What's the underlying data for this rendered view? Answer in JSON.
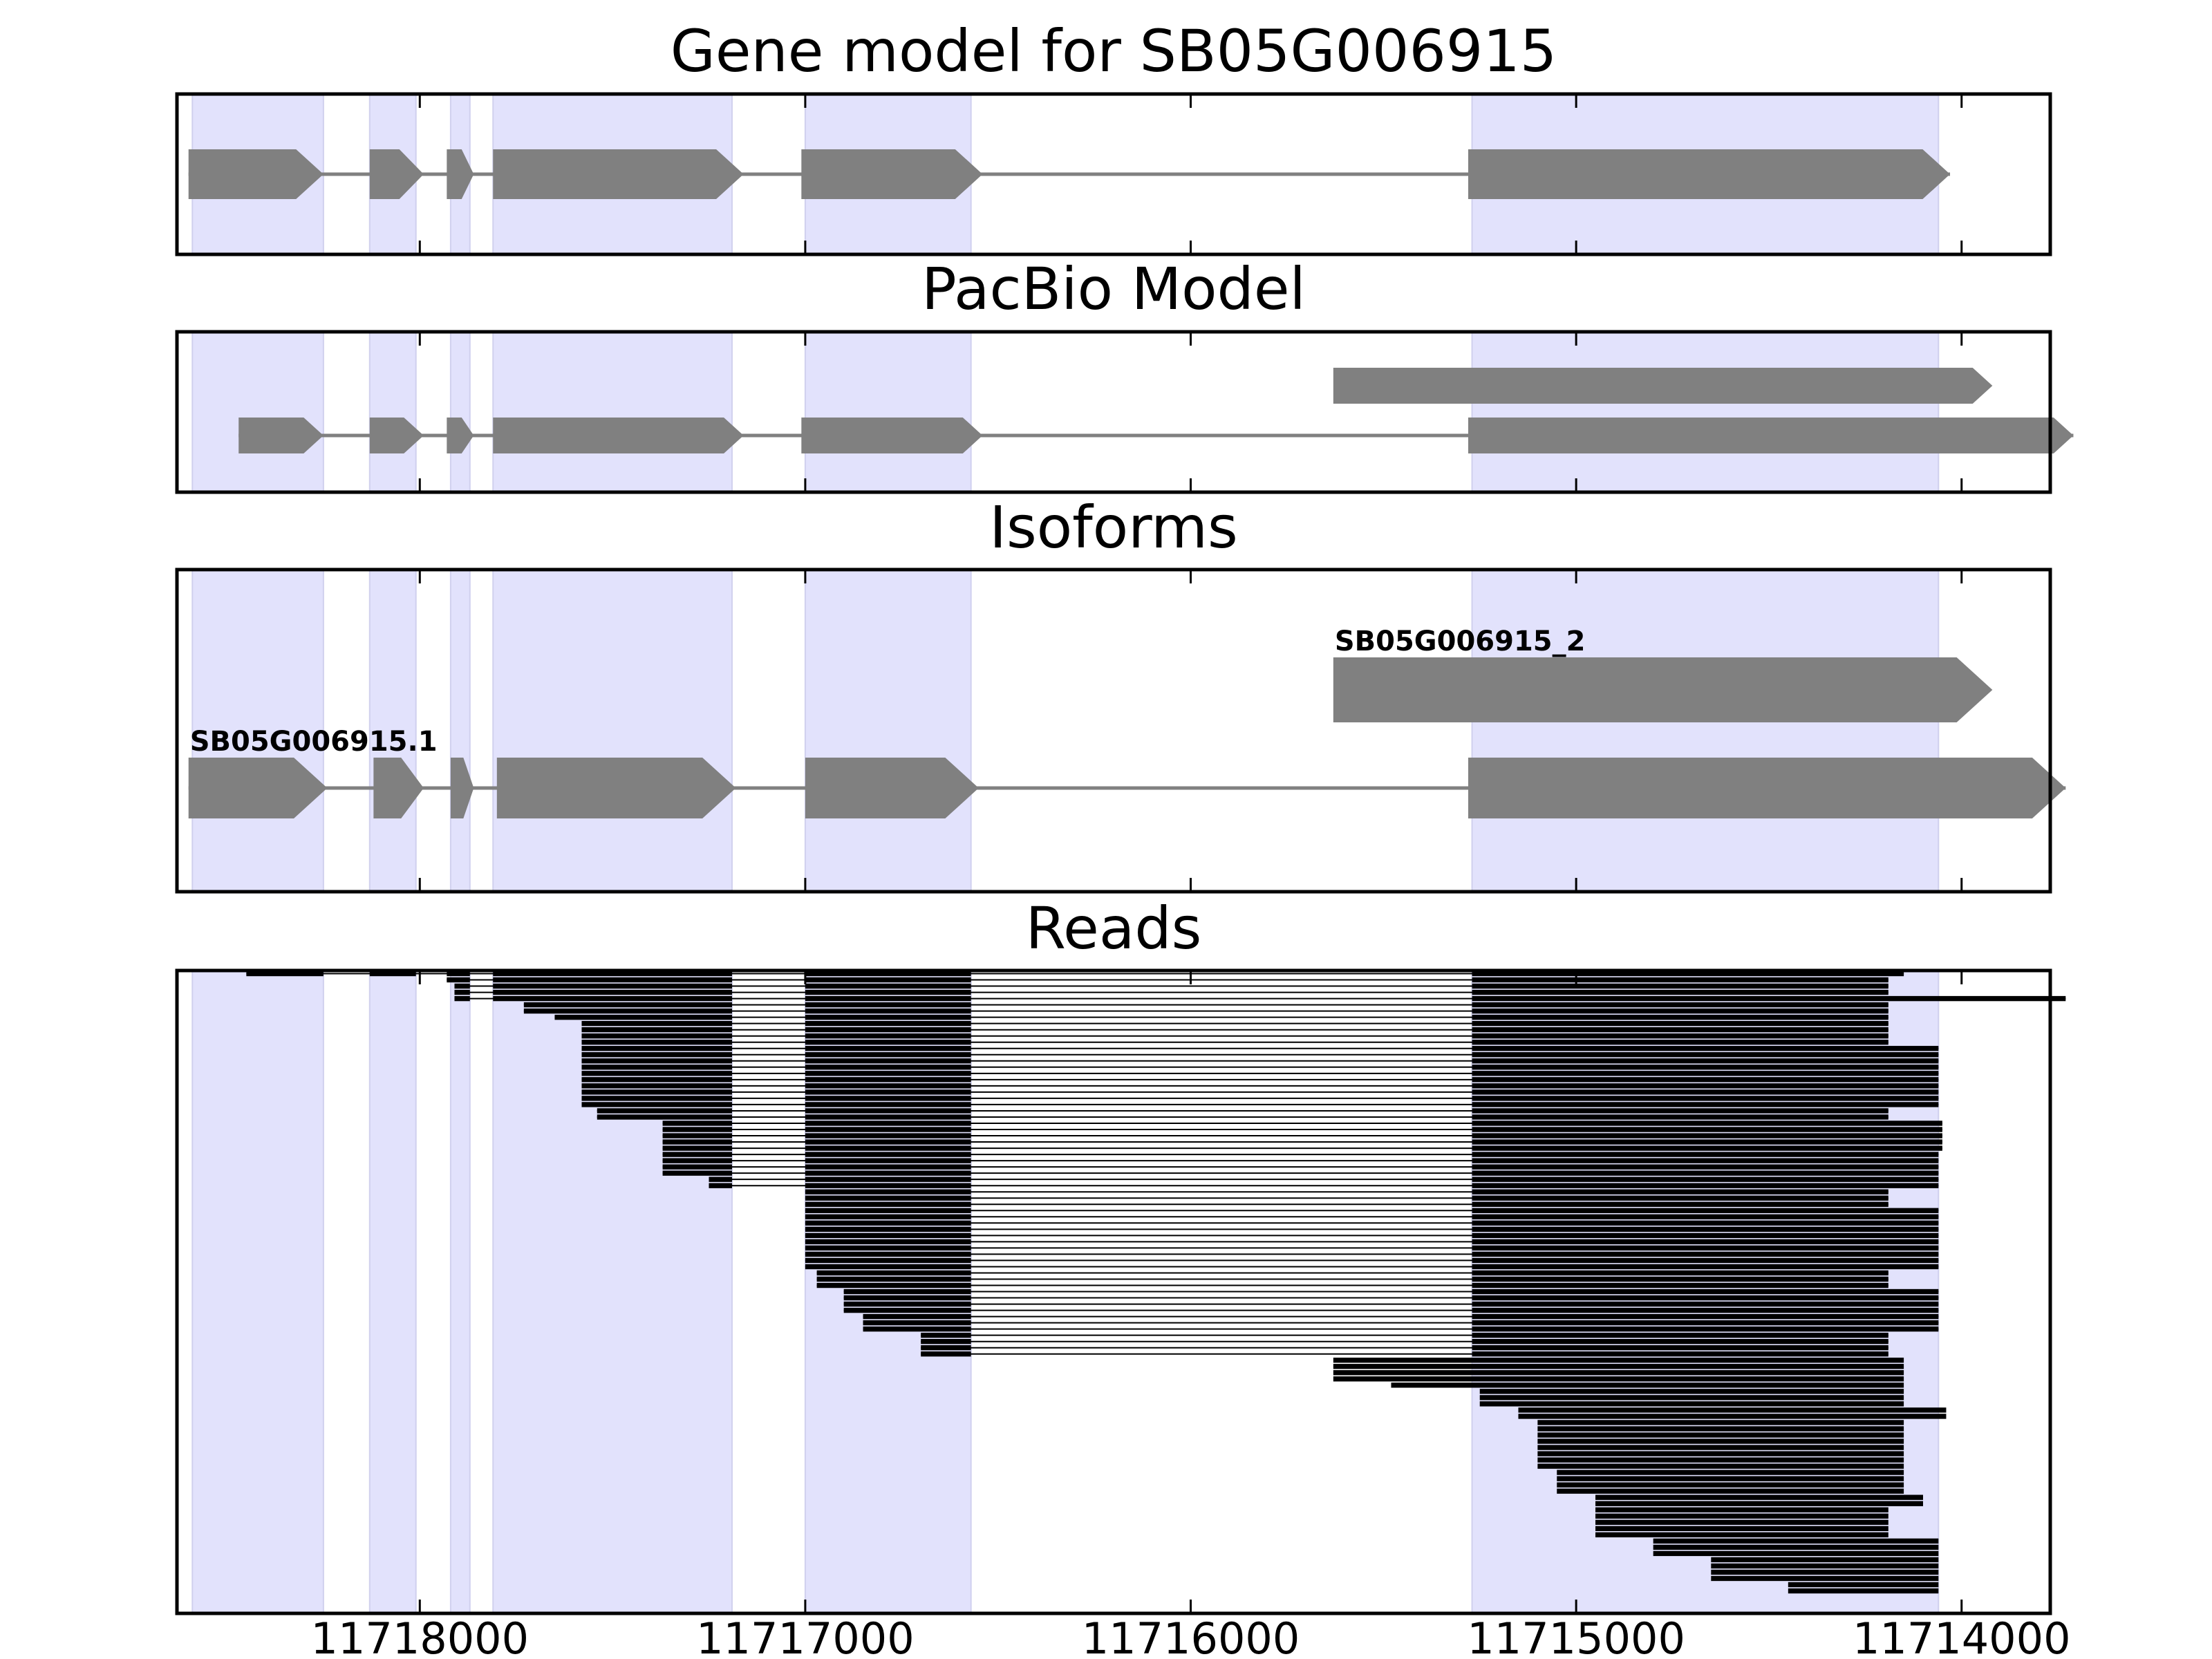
{
  "chart_data": {
    "type": "gene-track",
    "title": "Gene model for SB05G006915",
    "xlim": [
      11718630,
      11713770
    ],
    "x_ticks": [
      11718000,
      11717000,
      11716000,
      11715000,
      11714000
    ],
    "x_tick_labels": [
      "11718000",
      "11717000",
      "11716000",
      "11715000",
      "11714000"
    ],
    "colors": {
      "exon_shading": "#e2e2fc",
      "feature": "#808080",
      "intron_line": "#808080",
      "read": "#000000",
      "frame": "#000000"
    },
    "exon_regions": [
      [
        11718590,
        11718250
      ],
      [
        11718130,
        11718010
      ],
      [
        11717920,
        11717870
      ],
      [
        11717810,
        11717190
      ],
      [
        11717000,
        11716570
      ],
      [
        11715270,
        11714060
      ]
    ],
    "panels": [
      {
        "name": "gene-model",
        "title": "Gene model for SB05G006915",
        "rows": [
          {
            "exons": [
              [
                11718600,
                11718250
              ],
              [
                11718130,
                11717990
              ],
              [
                11717930,
                11717860
              ],
              [
                11717810,
                11717160
              ],
              [
                11717010,
                11716540
              ],
              [
                11715280,
                11714030
              ]
            ]
          }
        ]
      },
      {
        "name": "pacbio-model",
        "title": "PacBio Model",
        "rows": [
          {
            "exons": [
              [
                11715630,
                11713920
              ]
            ]
          },
          {
            "exons": [
              [
                11718470,
                11718250
              ],
              [
                11718130,
                11717990
              ],
              [
                11717930,
                11717860
              ],
              [
                11717810,
                11717160
              ],
              [
                11717010,
                11716540
              ],
              [
                11715280,
                11713710
              ]
            ]
          }
        ]
      },
      {
        "name": "isoforms",
        "title": "Isoforms",
        "rows": [
          {
            "label": "SB05G006915_2",
            "exons": [
              [
                11715630,
                11713920
              ]
            ]
          },
          {
            "label": "SB05G006915.1",
            "exons": [
              [
                11718600,
                11718240
              ],
              [
                11718120,
                11717990
              ],
              [
                11717920,
                11717860
              ],
              [
                11717800,
                11717180
              ],
              [
                11717000,
                11716550
              ],
              [
                11715280,
                11713730
              ]
            ]
          }
        ]
      },
      {
        "name": "reads",
        "title": "Reads",
        "groups": [
          {
            "count": 1,
            "blocks": [
              [
                11718450,
                11718250
              ],
              [
                11718130,
                11718010
              ],
              [
                11717930,
                11717870
              ],
              [
                11717810,
                11717190
              ],
              [
                11717000,
                11716570
              ],
              [
                11715270,
                11714150
              ]
            ]
          },
          {
            "count": 1,
            "blocks": [
              [
                11717930,
                11717870
              ],
              [
                11717810,
                11717190
              ],
              [
                11717000,
                11716570
              ],
              [
                11715270,
                11714190
              ]
            ]
          },
          {
            "count": 2,
            "blocks": [
              [
                11717910,
                11717870
              ],
              [
                11717810,
                11717190
              ],
              [
                11717000,
                11716570
              ],
              [
                11715270,
                11714190
              ]
            ]
          },
          {
            "count": 1,
            "blocks": [
              [
                11717910,
                11717870
              ],
              [
                11717810,
                11717190
              ],
              [
                11717000,
                11716570
              ],
              [
                11715270,
                11713730
              ]
            ]
          },
          {
            "count": 2,
            "blocks": [
              [
                11717730,
                11717190
              ],
              [
                11717000,
                11716570
              ],
              [
                11715270,
                11714190
              ]
            ]
          },
          {
            "count": 1,
            "blocks": [
              [
                11717650,
                11717190
              ],
              [
                11717000,
                11716570
              ],
              [
                11715270,
                11714190
              ]
            ]
          },
          {
            "count": 4,
            "blocks": [
              [
                11717580,
                11717190
              ],
              [
                11717000,
                11716570
              ],
              [
                11715270,
                11714190
              ]
            ]
          },
          {
            "count": 10,
            "blocks": [
              [
                11717580,
                11717190
              ],
              [
                11717000,
                11716570
              ],
              [
                11715270,
                11714060
              ]
            ]
          },
          {
            "count": 2,
            "blocks": [
              [
                11717540,
                11717190
              ],
              [
                11717000,
                11716570
              ],
              [
                11715270,
                11714190
              ]
            ]
          },
          {
            "count": 5,
            "blocks": [
              [
                11717370,
                11717190
              ],
              [
                11717000,
                11716570
              ],
              [
                11715270,
                11714050
              ]
            ]
          },
          {
            "count": 4,
            "blocks": [
              [
                11717370,
                11717190
              ],
              [
                11717000,
                11716570
              ],
              [
                11715270,
                11714060
              ]
            ]
          },
          {
            "count": 2,
            "blocks": [
              [
                11717250,
                11717190
              ],
              [
                11717000,
                11716570
              ],
              [
                11715270,
                11714060
              ]
            ]
          },
          {
            "count": 3,
            "blocks": [
              [
                11717000,
                11716570
              ],
              [
                11715270,
                11714190
              ]
            ]
          },
          {
            "count": 10,
            "blocks": [
              [
                11717000,
                11716570
              ],
              [
                11715270,
                11714060
              ]
            ]
          },
          {
            "count": 3,
            "blocks": [
              [
                11716970,
                11716570
              ],
              [
                11715270,
                11714190
              ]
            ]
          },
          {
            "count": 4,
            "blocks": [
              [
                11716900,
                11716570
              ],
              [
                11715270,
                11714060
              ]
            ]
          },
          {
            "count": 3,
            "blocks": [
              [
                11716850,
                11716570
              ],
              [
                11715270,
                11714060
              ]
            ]
          },
          {
            "count": 4,
            "blocks": [
              [
                11716700,
                11716570
              ],
              [
                11715270,
                11714190
              ]
            ]
          },
          {
            "count": 4,
            "blocks": [
              [
                11715630,
                11714150
              ]
            ]
          },
          {
            "count": 1,
            "blocks": [
              [
                11715480,
                11714150
              ]
            ]
          },
          {
            "count": 3,
            "blocks": [
              [
                11715250,
                11714150
              ]
            ]
          },
          {
            "count": 2,
            "blocks": [
              [
                11715150,
                11714040
              ]
            ]
          },
          {
            "count": 8,
            "blocks": [
              [
                11715100,
                11714150
              ]
            ]
          },
          {
            "count": 4,
            "blocks": [
              [
                11715050,
                11714150
              ]
            ]
          },
          {
            "count": 2,
            "blocks": [
              [
                11714950,
                11714100
              ]
            ]
          },
          {
            "count": 5,
            "blocks": [
              [
                11714950,
                11714190
              ]
            ]
          },
          {
            "count": 3,
            "blocks": [
              [
                11714800,
                11714060
              ]
            ]
          },
          {
            "count": 4,
            "blocks": [
              [
                11714650,
                11714060
              ]
            ]
          },
          {
            "count": 2,
            "blocks": [
              [
                11714450,
                11714060
              ]
            ]
          }
        ]
      }
    ]
  }
}
